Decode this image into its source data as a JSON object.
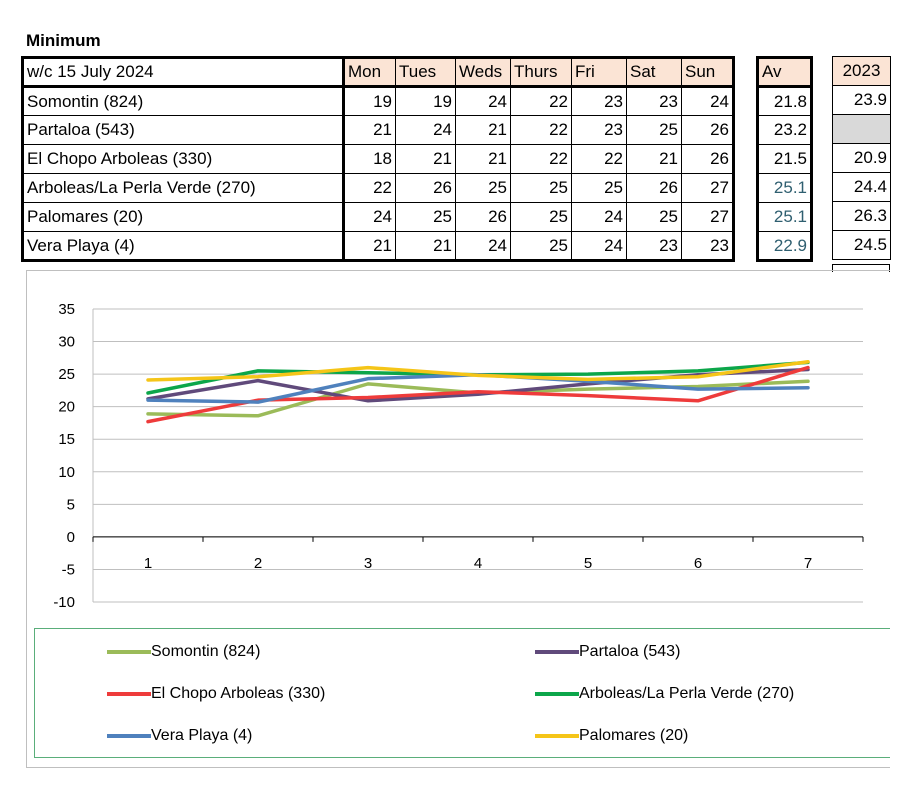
{
  "title": "Minimum",
  "week_label": "w/c  15 July 2024",
  "days": [
    "Mon",
    "Tues",
    "Weds",
    "Thurs",
    "Fri",
    "Sat",
    "Sun"
  ],
  "av_label": "Av",
  "year_label": "2023",
  "rows": [
    {
      "name": "Somontin (824)",
      "values": [
        "19",
        "19",
        "24",
        "22",
        "23",
        "23",
        "24"
      ],
      "av": "21.8",
      "y2023": "23.9"
    },
    {
      "name": "Partaloa (543)",
      "values": [
        "21",
        "24",
        "21",
        "22",
        "23",
        "25",
        "26"
      ],
      "av": "23.2",
      "y2023": ""
    },
    {
      "name": "El Chopo Arboleas (330)",
      "values": [
        "18",
        "21",
        "21",
        "22",
        "22",
        "21",
        "26"
      ],
      "av": "21.5",
      "y2023": "20.9"
    },
    {
      "name": "Arboleas/La Perla Verde (270)",
      "values": [
        "22",
        "26",
        "25",
        "25",
        "25",
        "26",
        "27"
      ],
      "av": "25.1",
      "y2023": "24.4"
    },
    {
      "name": "Palomares (20)",
      "values": [
        "24",
        "25",
        "26",
        "25",
        "24",
        "25",
        "27"
      ],
      "av": "25.1",
      "y2023": "26.3"
    },
    {
      "name": "Vera Playa (4)",
      "values": [
        "21",
        "21",
        "24",
        "25",
        "24",
        "23",
        "23"
      ],
      "av": "22.9",
      "y2023": "24.5"
    }
  ],
  "chart_data": {
    "type": "line",
    "x": [
      1,
      2,
      3,
      4,
      5,
      6,
      7
    ],
    "ylim": [
      -10,
      35
    ],
    "yticks": [
      -10,
      -5,
      0,
      5,
      10,
      15,
      20,
      25,
      30,
      35
    ],
    "grid": true,
    "legend_position": "bottom",
    "series": [
      {
        "name": "Somontin (824)",
        "color": "#9bbb59",
        "values": [
          18.9,
          18.6,
          23.5,
          22.1,
          22.7,
          23.1,
          23.9
        ]
      },
      {
        "name": "Partaloa (543)",
        "color": "#604a7b",
        "values": [
          21.2,
          24.0,
          20.9,
          21.9,
          23.5,
          24.9,
          25.7
        ]
      },
      {
        "name": "El Chopo Arboleas (330)",
        "color": "#ee3b3b",
        "values": [
          17.7,
          21.0,
          21.4,
          22.3,
          21.7,
          20.9,
          26.0
        ]
      },
      {
        "name": "Arboleas/La Perla Verde (270)",
        "color": "#0ca64a",
        "values": [
          22.1,
          25.5,
          25.2,
          24.9,
          25.0,
          25.5,
          26.8
        ]
      },
      {
        "name": "Vera Playa (4)",
        "color": "#4f81bd",
        "values": [
          21.0,
          20.7,
          24.3,
          24.9,
          23.9,
          22.7,
          22.9
        ]
      },
      {
        "name": "Palomares (20)",
        "color": "#f5c518",
        "values": [
          24.1,
          24.6,
          26.0,
          24.8,
          24.2,
          24.6,
          26.9
        ]
      }
    ]
  }
}
